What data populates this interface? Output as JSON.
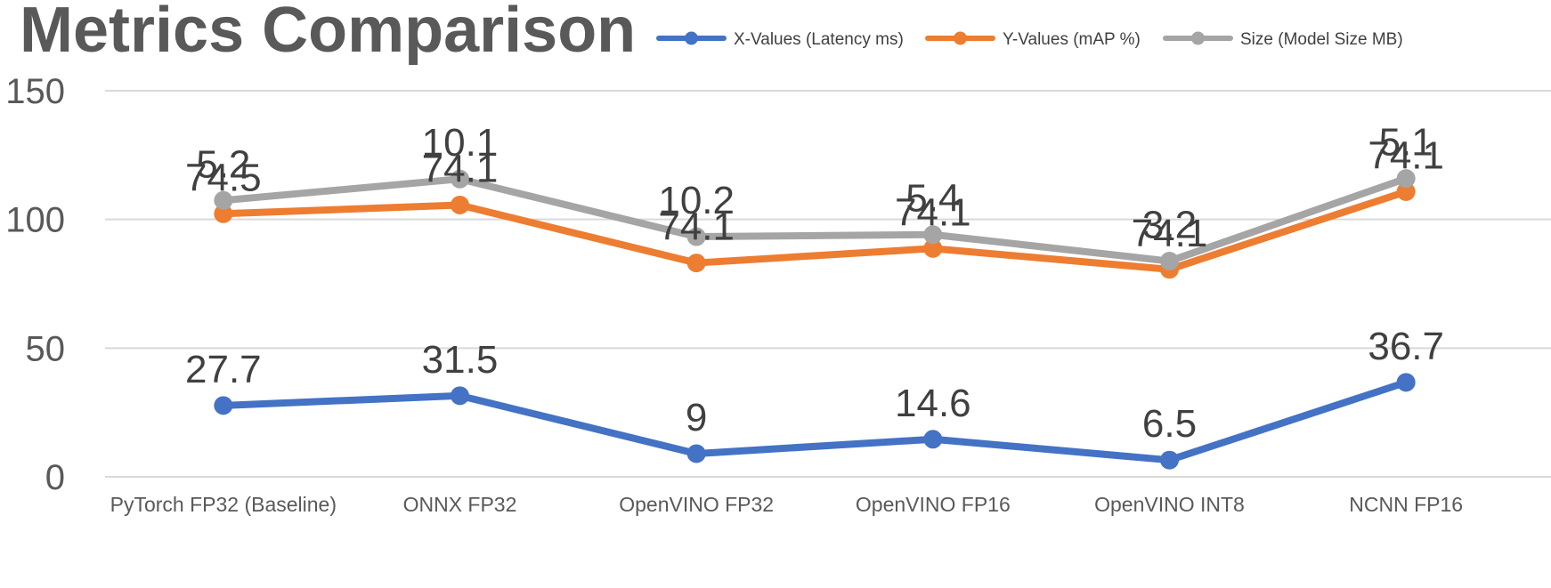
{
  "chart_data": {
    "type": "line",
    "title": "Metrics Comparison",
    "categories": [
      "PyTorch FP32 (Baseline)",
      "ONNX FP32",
      "OpenVINO FP32",
      "OpenVINO FP16",
      "OpenVINO INT8",
      "NCNN FP16"
    ],
    "ylim": [
      0,
      150
    ],
    "yticks": [
      "0",
      "50",
      "100",
      "150"
    ],
    "stacked": true,
    "grid": true,
    "legend_position": "top-right",
    "series": [
      {
        "name": "X-Values (Latency ms)",
        "color": "#4472c4",
        "values": [
          27.7,
          31.5,
          9,
          14.6,
          6.5,
          36.7
        ],
        "labels": [
          "27.7",
          "31.5",
          "9",
          "14.6",
          "6.5",
          "36.7"
        ]
      },
      {
        "name": "Y-Values (mAP %)",
        "color": "#ed7d31",
        "values": [
          74.5,
          74.1,
          74.1,
          74.1,
          74.1,
          74.1
        ],
        "labels": [
          "74.5",
          "74.1",
          "74.1",
          "74.1",
          "74.1",
          "74.1"
        ]
      },
      {
        "name": "Size (Model Size MB)",
        "color": "#a5a5a5",
        "values": [
          5.2,
          10.1,
          10.2,
          5.4,
          3.2,
          5.1
        ],
        "labels": [
          "5.2",
          "10.1",
          "10.2",
          "5.4",
          "3.2",
          "5.1"
        ]
      }
    ]
  }
}
